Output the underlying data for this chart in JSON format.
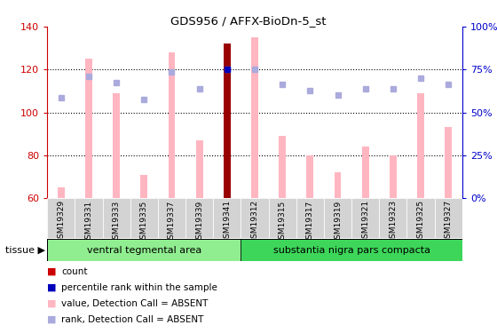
{
  "title": "GDS956 / AFFX-BioDn-5_st",
  "samples": [
    "GSM19329",
    "GSM19331",
    "GSM19333",
    "GSM19335",
    "GSM19337",
    "GSM19339",
    "GSM19341",
    "GSM19312",
    "GSM19315",
    "GSM19317",
    "GSM19319",
    "GSM19321",
    "GSM19323",
    "GSM19325",
    "GSM19327"
  ],
  "values_absent": [
    65,
    125,
    109,
    71,
    128,
    87,
    132,
    135,
    89,
    80,
    72,
    84,
    80,
    109,
    93
  ],
  "ranks_absent": [
    107,
    117,
    114,
    106,
    119,
    111,
    120,
    120,
    113,
    110,
    108,
    111,
    111,
    116,
    113
  ],
  "count_bar_index": 6,
  "count_bar_value": 132,
  "percentile_bar_index": 6,
  "percentile_bar_value": 120,
  "ylim_left": [
    60,
    140
  ],
  "ylim_right": [
    0,
    100
  ],
  "yticks_left": [
    60,
    80,
    100,
    120,
    140
  ],
  "yticks_right": [
    0,
    25,
    50,
    75,
    100
  ],
  "ytick_labels_right": [
    "0%",
    "25%",
    "50%",
    "75%",
    "100%"
  ],
  "tissue_groups": [
    {
      "label": "ventral tegmental area",
      "start": 0,
      "end": 6,
      "color": "#90EE90"
    },
    {
      "label": "substantia nigra pars compacta",
      "start": 7,
      "end": 14,
      "color": "#3DD65A"
    }
  ],
  "bar_color_absent": "#FFB6C1",
  "rank_color_absent": "#AAAADD",
  "count_color": "#990000",
  "percentile_color": "#0000BB",
  "axis_label_color_left": "#CC0000",
  "axis_label_color_right": "#0000CC",
  "grid_color": "#000000",
  "tissue_label": "tissue",
  "legend_items": [
    {
      "color": "#CC0000",
      "label": "count"
    },
    {
      "color": "#0000BB",
      "label": "percentile rank within the sample"
    },
    {
      "color": "#FFB6C1",
      "label": "value, Detection Call = ABSENT"
    },
    {
      "color": "#AAAADD",
      "label": "rank, Detection Call = ABSENT"
    }
  ]
}
